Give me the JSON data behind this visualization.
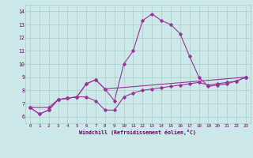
{
  "xlabel": "Windchill (Refroidissement éolien,°C)",
  "bg_color": "#cce8e8",
  "line_color": "#993399",
  "grid_color": "#aacccc",
  "text_color": "#660066",
  "ylim": [
    5.5,
    14.5
  ],
  "xlim": [
    -0.5,
    23.5
  ],
  "yticks": [
    6,
    7,
    8,
    9,
    10,
    11,
    12,
    13,
    14
  ],
  "xticks": [
    0,
    1,
    2,
    3,
    4,
    5,
    6,
    7,
    8,
    9,
    10,
    11,
    12,
    13,
    14,
    15,
    16,
    17,
    18,
    19,
    20,
    21,
    22,
    23
  ],
  "line1_x": [
    0,
    1,
    2,
    3,
    4,
    5,
    6,
    7,
    8,
    9,
    10,
    11,
    12,
    13,
    14,
    15,
    16,
    17,
    18,
    19,
    20,
    21,
    22,
    23
  ],
  "line1_y": [
    6.7,
    6.2,
    6.5,
    7.3,
    7.4,
    7.5,
    8.5,
    8.8,
    8.1,
    7.2,
    10.0,
    11.0,
    13.3,
    13.8,
    13.3,
    13.0,
    12.3,
    10.6,
    9.0,
    8.3,
    8.4,
    8.5,
    8.7,
    9.0
  ],
  "line2_x": [
    0,
    1,
    2,
    3,
    4,
    5,
    6,
    7,
    8,
    9,
    10,
    11,
    12,
    13,
    14,
    15,
    16,
    17,
    18,
    19,
    20,
    21,
    22,
    23
  ],
  "line2_y": [
    6.7,
    6.2,
    6.5,
    7.3,
    7.4,
    7.5,
    7.5,
    7.2,
    6.5,
    6.5,
    7.5,
    7.8,
    8.0,
    8.1,
    8.2,
    8.3,
    8.4,
    8.5,
    8.6,
    8.4,
    8.5,
    8.6,
    8.7,
    9.0
  ],
  "line3_x": [
    0,
    2,
    3,
    4,
    5,
    6,
    7,
    8,
    23
  ],
  "line3_y": [
    6.7,
    6.7,
    7.3,
    7.4,
    7.5,
    8.5,
    8.8,
    8.1,
    9.0
  ]
}
